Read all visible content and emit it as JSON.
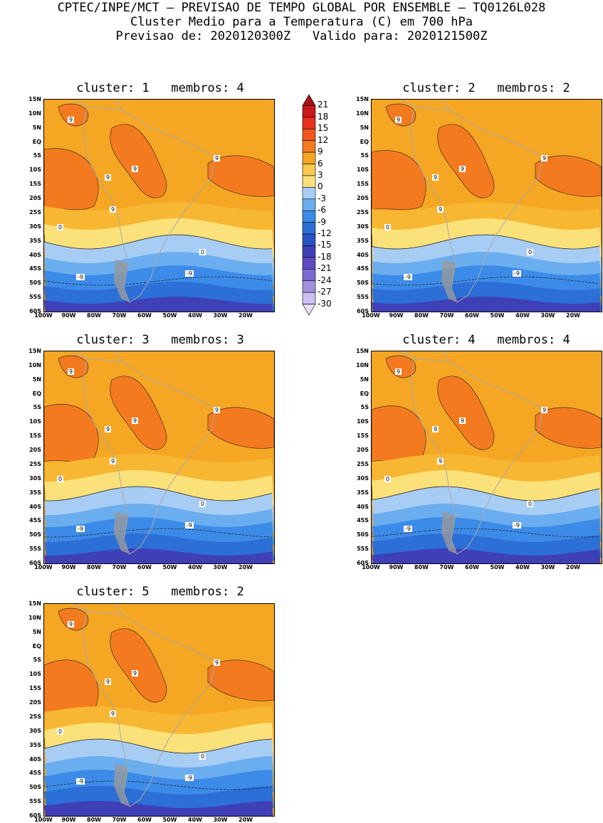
{
  "header": {
    "line1": "CPTEC/INPE/MCT – PREVISAO DE TEMPO GLOBAL POR ENSEMBLE – TQ0126L028",
    "line2": "Cluster Medio para a Temperatura (C) em 700 hPa",
    "line3": "Previsao de: 2020120300Z   Valido para: 2020121500Z"
  },
  "lat_labels": [
    "15N",
    "10N",
    "5N",
    "EQ",
    "5S",
    "10S",
    "15S",
    "20S",
    "25S",
    "30S",
    "35S",
    "40S",
    "45S",
    "50S",
    "55S",
    "60S"
  ],
  "lon_labels": [
    "100W",
    "90W",
    "80W",
    "70W",
    "60W",
    "50W",
    "40W",
    "30W",
    "20W"
  ],
  "colorbar": {
    "labels": [
      "21",
      "18",
      "15",
      "12",
      "9",
      "6",
      "3",
      "0",
      "-3",
      "-6",
      "-9",
      "-12",
      "-15",
      "-18",
      "-21",
      "-24",
      "-27",
      "-30"
    ],
    "colors": [
      "#a50f15",
      "#cb181d",
      "#e8321e",
      "#f0561e",
      "#f47a20",
      "#f5a623",
      "#f9c74f",
      "#fbe17a",
      "#a8cdf4",
      "#6aaef0",
      "#3d8be8",
      "#2c6fd6",
      "#2854c4",
      "#3f3fb7",
      "#5e4bc4",
      "#7d6ad0",
      "#a391de",
      "#cdbff0",
      "#e8e2f8"
    ]
  },
  "panels": [
    {
      "title": "cluster: 1   membros: 4",
      "labels_9": [
        "9",
        "9",
        "9",
        "9",
        "9"
      ],
      "label_0": "0",
      "label_m9": "-9"
    },
    {
      "title": "cluster: 2   membros: 2",
      "labels_9": [
        "9",
        "9",
        "9",
        "9",
        "9"
      ],
      "label_0": "0",
      "label_m9": "-9"
    },
    {
      "title": "cluster: 3   membros: 3",
      "labels_9": [
        "9",
        "9",
        "9",
        "9",
        "9"
      ],
      "label_0": "0",
      "label_m9": "-9"
    },
    {
      "title": "cluster: 4   membros: 4",
      "labels_9": [
        "9",
        "9",
        "9",
        "9",
        "9"
      ],
      "label_0": "0",
      "label_m9": "-9"
    },
    {
      "title": "cluster: 5   membros: 2",
      "labels_9": [
        "9",
        "9",
        "9",
        "9",
        "9"
      ],
      "label_0": "0",
      "label_m9": "-9"
    }
  ]
}
